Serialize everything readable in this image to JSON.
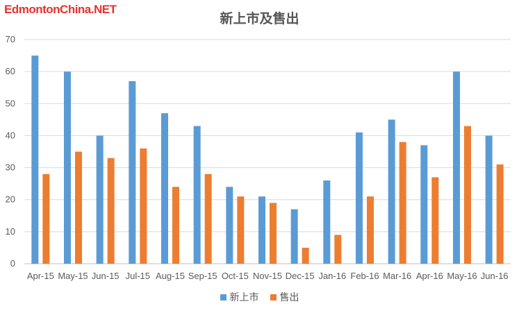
{
  "watermark": "EdmontonChina.NET",
  "chart_data": {
    "type": "bar",
    "title": "新上市及售出",
    "xlabel": "",
    "ylabel": "",
    "ylim": [
      0,
      70
    ],
    "yticks": [
      0,
      10,
      20,
      30,
      40,
      50,
      60,
      70
    ],
    "grid": true,
    "legend_position": "bottom",
    "categories": [
      "Apr-15",
      "May-15",
      "Jun-15",
      "Jul-15",
      "Aug-15",
      "Sep-15",
      "Oct-15",
      "Nov-15",
      "Dec-15",
      "Jan-16",
      "Feb-16",
      "Mar-16",
      "Apr-16",
      "May-16",
      "Jun-16"
    ],
    "series": [
      {
        "name": "新上市",
        "color": "#5b9bd5",
        "values": [
          65,
          60,
          40,
          57,
          47,
          43,
          24,
          21,
          17,
          26,
          41,
          45,
          37,
          60,
          40
        ]
      },
      {
        "name": "售出",
        "color": "#ed7d31",
        "values": [
          28,
          35,
          33,
          36,
          24,
          28,
          21,
          19,
          5,
          9,
          21,
          38,
          27,
          43,
          31
        ]
      }
    ]
  }
}
